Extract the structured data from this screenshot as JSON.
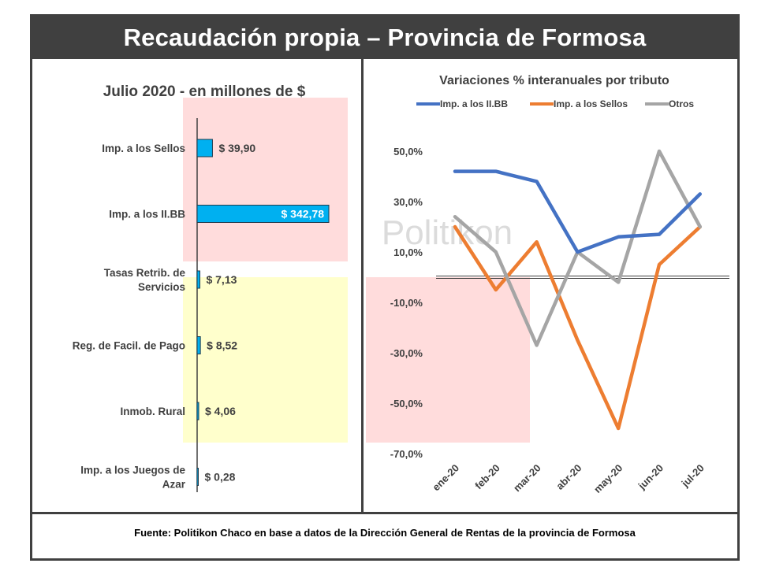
{
  "header": {
    "title": "Recaudación propia – Provincia de Formosa"
  },
  "footer": {
    "source": "Fuente: Politikon Chaco en base a datos de la Dirección General de Rentas de la provincia de Formosa"
  },
  "watermark": "Politikon",
  "colors": {
    "bar_fill": "#00b0f0",
    "pink_zone": "#ffdcdc",
    "yellow_zone": "#ffffcc",
    "line_iibb": "#4472c4",
    "line_sellos": "#ed7d31",
    "line_otros": "#a5a5a5"
  },
  "chart_data": [
    {
      "type": "bar",
      "orientation": "horizontal",
      "title": "Julio 2020 - en millones de $",
      "categories": [
        "Imp. a los Sellos",
        "Imp. a los II.BB",
        "Tasas Retrib. de Servicios",
        "Reg. de Facil. de Pago",
        "Inmob. Rural",
        "Imp. a los Juegos de Azar"
      ],
      "category_lines": [
        [
          "Imp. a los Sellos"
        ],
        [
          "Imp. a los II.BB"
        ],
        [
          "Tasas Retrib. de",
          "Servicios"
        ],
        [
          "Reg. de Facil. de Pago"
        ],
        [
          "Inmob. Rural"
        ],
        [
          "Imp. a los Juegos de",
          "Azar"
        ]
      ],
      "values": [
        39.9,
        342.78,
        7.13,
        8.52,
        4.06,
        0.28
      ],
      "data_labels": [
        "$ 39,90",
        "$ 342,78",
        "$ 7,13",
        "$ 8,52",
        "$ 4,06",
        "$ 0,28"
      ],
      "xlim": [
        0,
        400
      ]
    },
    {
      "type": "line",
      "title": "Variaciones % interanuales por tributo",
      "x": [
        "ene-20",
        "feb-20",
        "mar-20",
        "abr-20",
        "may-20",
        "jun-20",
        "jul-20"
      ],
      "series": [
        {
          "name": "Imp. a los II.BB",
          "values": [
            42,
            42,
            38,
            10,
            16,
            17,
            33
          ]
        },
        {
          "name": "Imp. a los Sellos",
          "values": [
            20,
            -5,
            14,
            -25,
            -60,
            5,
            20
          ]
        },
        {
          "name": "Otros",
          "values": [
            24,
            10,
            -27,
            10,
            -2,
            50,
            20
          ]
        }
      ],
      "yticks": [
        50,
        30,
        10,
        -10,
        -30,
        -50,
        -70
      ],
      "ytick_labels": [
        "50,0%",
        "30,0%",
        "10,0%",
        "-10,0%",
        "-30,0%",
        "-50,0%",
        "-70,0%"
      ],
      "ylim": [
        -70,
        50
      ],
      "legend": "top",
      "grid": false
    }
  ]
}
